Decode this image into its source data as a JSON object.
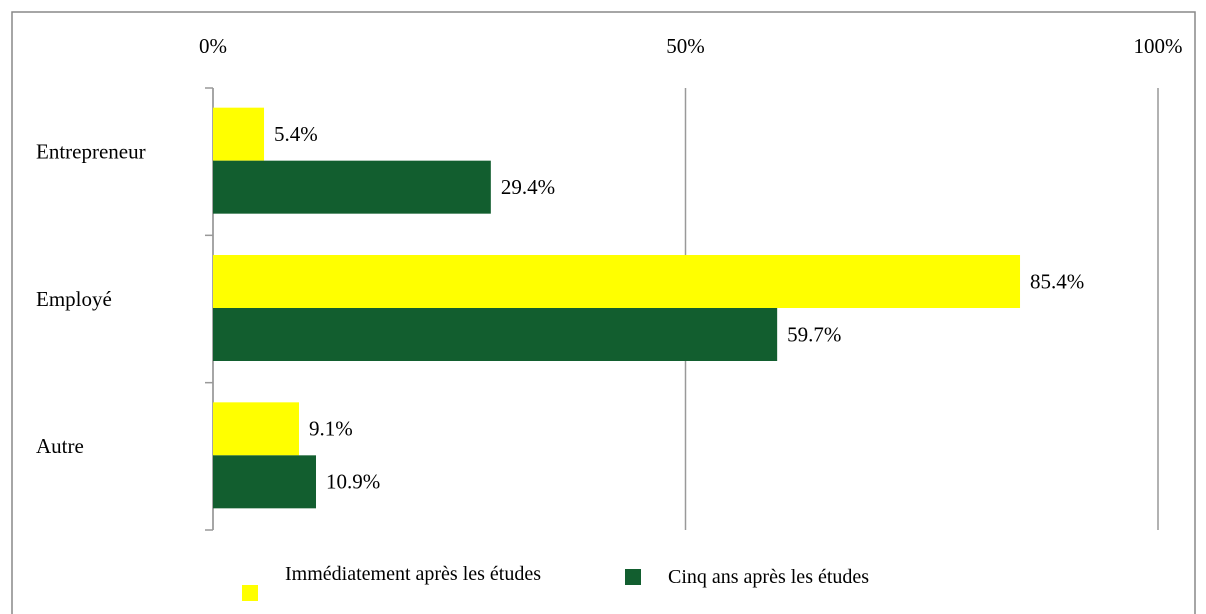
{
  "chart_data": {
    "type": "barh",
    "categories": [
      "Entrepreneur",
      "Employé",
      "Autre"
    ],
    "series": [
      {
        "name": "Immédiatement après les études",
        "color": "#ffff00",
        "values": [
          5.4,
          85.4,
          9.1
        ],
        "value_labels": [
          "5.4%",
          "85.4%",
          "9.1%"
        ]
      },
      {
        "name": "Cinq ans après les études",
        "color": "#125e2f",
        "values": [
          29.4,
          59.7,
          10.9
        ],
        "value_labels": [
          "29.4%",
          "59.7%",
          "10.9%"
        ]
      }
    ],
    "xlim": [
      0,
      100
    ],
    "xticks": [
      {
        "value": 0,
        "label": "0%"
      },
      {
        "value": 50,
        "label": "50%"
      },
      {
        "value": 100,
        "label": "100%"
      }
    ],
    "grid": true,
    "legend": "bottom"
  }
}
